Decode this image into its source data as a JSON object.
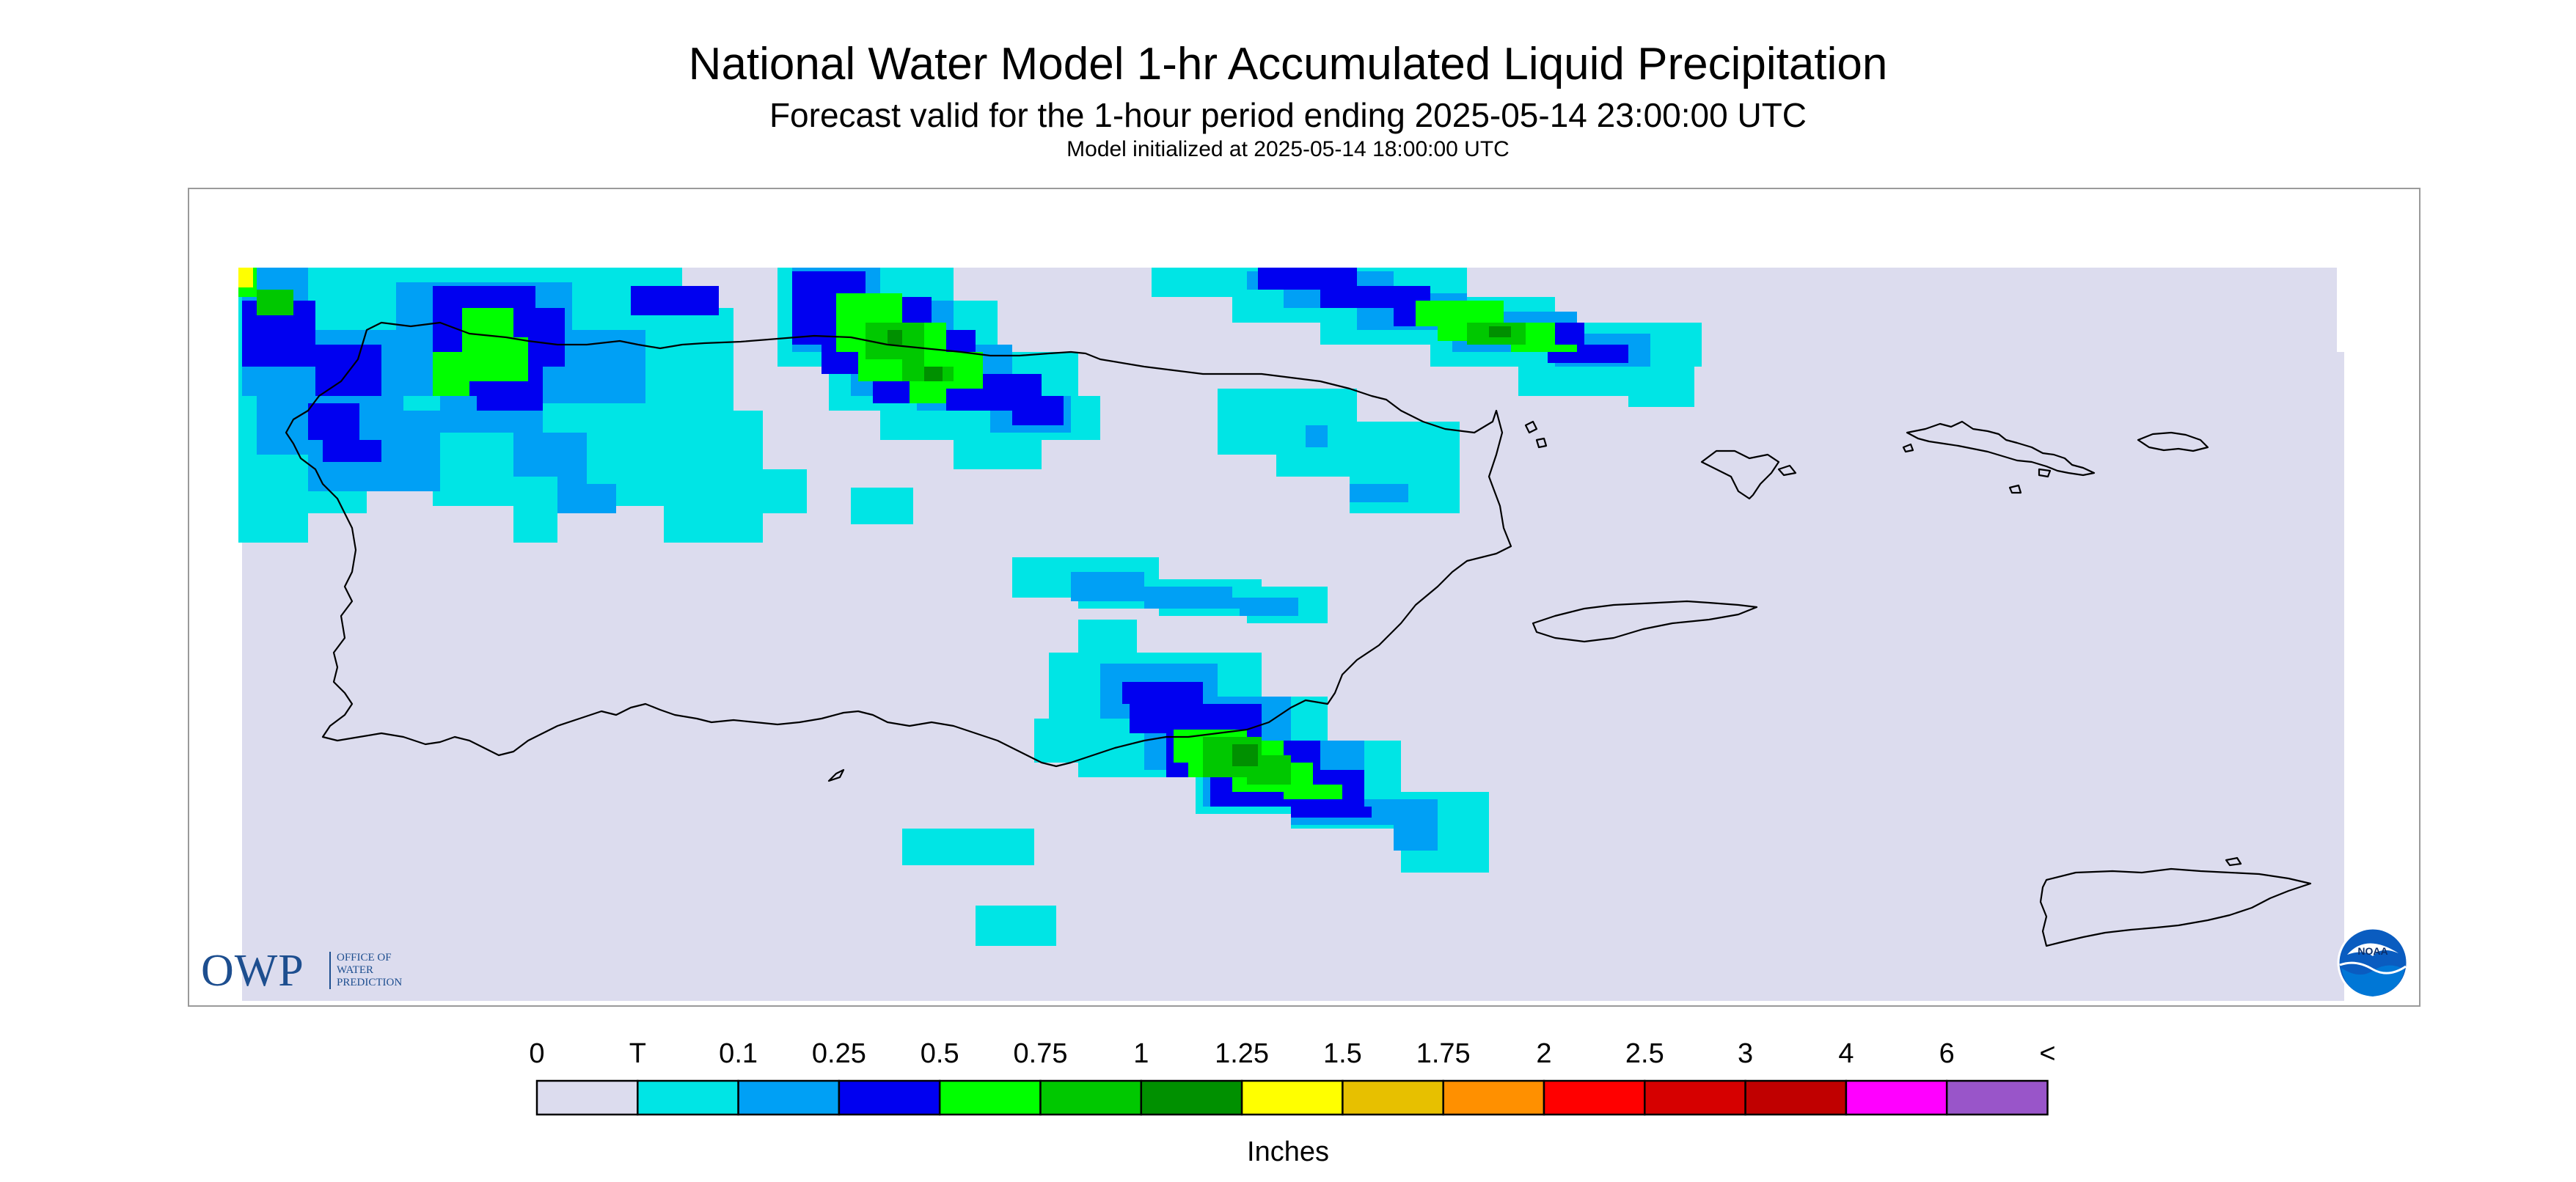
{
  "header": {
    "title": "National Water Model 1-hr Accumulated Liquid Precipitation",
    "subtitle": "Forecast valid for the 1-hour period ending 2025-05-14 23:00:00 UTC",
    "init": "Model initialized at 2025-05-14 18:00:00 UTC"
  },
  "logos": {
    "owp_mark": "OWP",
    "owp_lines": [
      "OFFICE OF",
      "WATER",
      "PREDICTION"
    ],
    "noaa_mark": "NOAA"
  },
  "legend": {
    "labels": [
      "0",
      "T",
      "0.1",
      "0.25",
      "0.5",
      "0.75",
      "1",
      "1.25",
      "1.5",
      "1.75",
      "2",
      "2.5",
      "3",
      "4",
      "6",
      "<"
    ],
    "colors": [
      "#dcdcee",
      "#00e5e5",
      "#00a0f5",
      "#0000f0",
      "#00ff00",
      "#00c800",
      "#009000",
      "#ffff00",
      "#e7c000",
      "#ff9000",
      "#ff0000",
      "#d60000",
      "#c00000",
      "#ff00ff",
      "#9955c9"
    ],
    "units": "Inches"
  },
  "colors": {
    "background": "#dcdcee",
    "frame": "#9a9a9a",
    "coastline": "#000000",
    "owp_blue": "#1d4e8f"
  }
}
